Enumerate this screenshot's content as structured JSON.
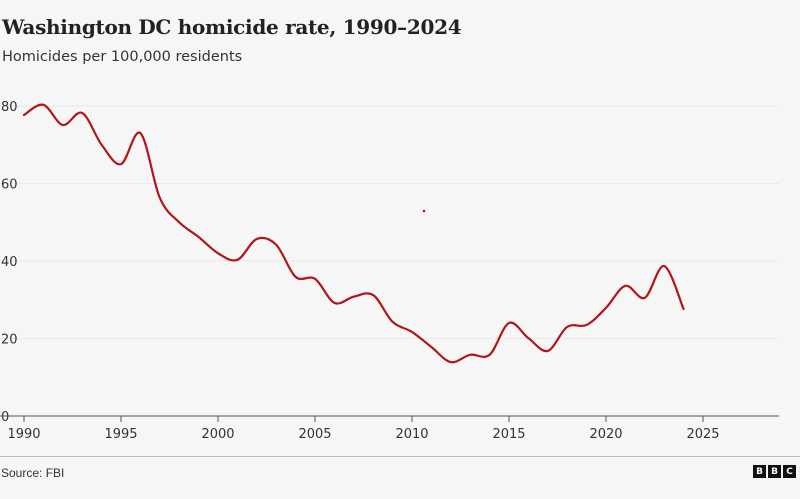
{
  "title": "Washington DC homicide rate, 1990–2024",
  "subtitle": "Homicides per 100,000 residents",
  "source": "Source: FBI",
  "logo": {
    "text": [
      "B",
      "B",
      "C"
    ]
  },
  "colors": {
    "line": "#b0161b",
    "background": "#f6f6f6",
    "grid": "#e8e8e8"
  },
  "chart_data": {
    "type": "line",
    "title": "Washington DC homicide rate, 1990–2024",
    "subtitle": "Homicides per 100,000 residents",
    "xlim": [
      1990,
      2029
    ],
    "ylim": [
      0,
      80
    ],
    "xticks": [
      1990,
      1995,
      2000,
      2005,
      2010,
      2015,
      2020,
      2025
    ],
    "yticks": [
      0,
      20,
      40,
      60,
      80
    ],
    "grid": "horizontal",
    "x": [
      1990,
      1991,
      1992,
      1993,
      1994,
      1995,
      1996,
      1997,
      1998,
      1999,
      2000,
      2001,
      2002,
      2003,
      2004,
      2005,
      2006,
      2007,
      2008,
      2009,
      2010,
      2011,
      2012,
      2013,
      2014,
      2015,
      2016,
      2017,
      2018,
      2019,
      2020,
      2021,
      2022,
      2023,
      2024
    ],
    "values": [
      77.7,
      80.3,
      75.1,
      78.2,
      70,
      65,
      73,
      56.3,
      50,
      46.2,
      42,
      40.3,
      45.7,
      44.2,
      35.9,
      35.4,
      29.2,
      30.8,
      31.2,
      24.3,
      21.7,
      17.8,
      13.9,
      15.8,
      15.8,
      24,
      20.1,
      16.8,
      23,
      23.5,
      27.9,
      33.6,
      30.5,
      38.7,
      27.6
    ]
  }
}
